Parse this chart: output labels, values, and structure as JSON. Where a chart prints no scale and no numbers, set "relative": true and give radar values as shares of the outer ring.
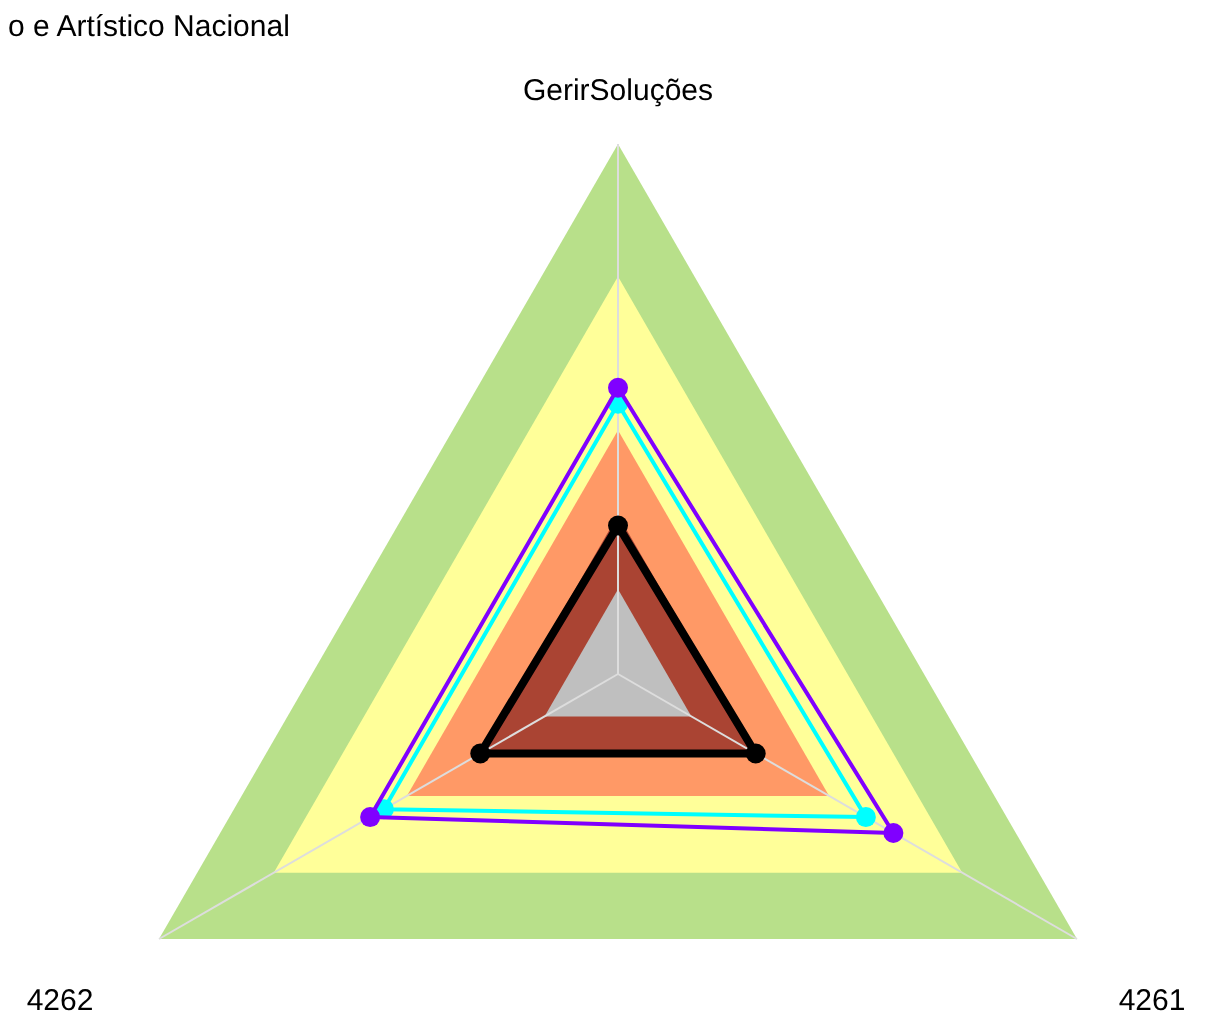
{
  "chart_data": {
    "type": "radar",
    "title": "o e Artístico Nacional",
    "relative": true,
    "categories": [
      "GerirSoluções",
      "4261",
      "4262"
    ],
    "marker": "circle",
    "line_style": "solid",
    "series": [
      {
        "color": "#00ffff",
        "values": [
          0.51,
          0.54,
          0.51
        ]
      },
      {
        "color": "#8000ff",
        "values": [
          0.54,
          0.6,
          0.54
        ]
      },
      {
        "color": "#000000",
        "values": [
          0.28,
          0.3,
          0.3
        ]
      }
    ]
  }
}
